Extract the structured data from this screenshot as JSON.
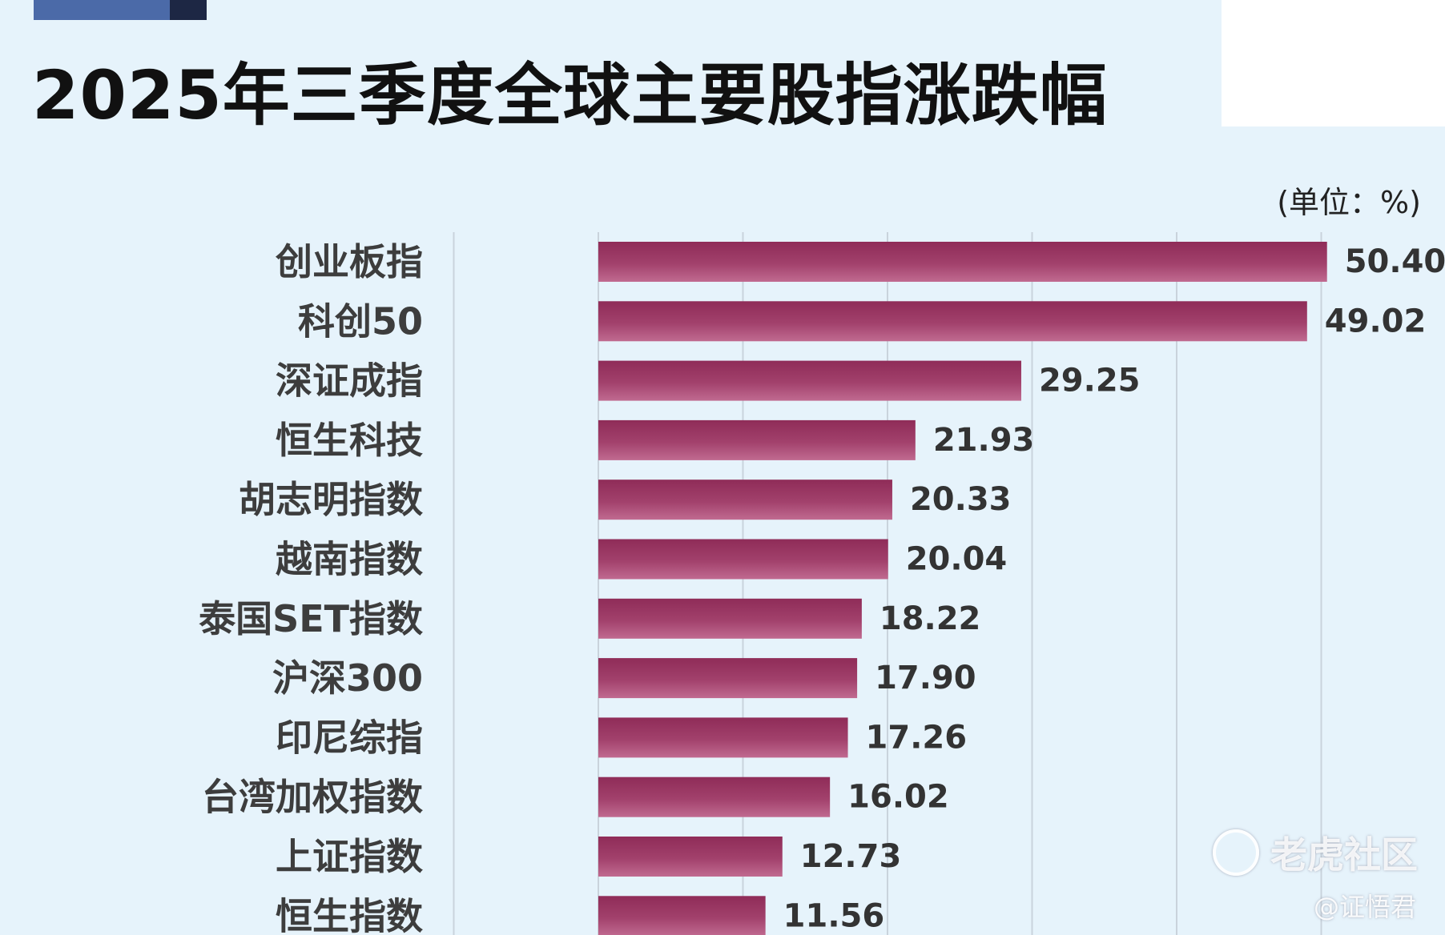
{
  "header": {
    "title": "2025年三季度全球主要股指涨跌幅",
    "unit": "(单位：%)"
  },
  "chart_data": {
    "type": "bar",
    "orientation": "horizontal",
    "categories": [
      "创业板指",
      "科创50",
      "深证成指",
      "恒生科技",
      "胡志明指数",
      "越南指数",
      "泰国SET指数",
      "沪深300",
      "印尼综指",
      "台湾加权指数",
      "上证指数",
      "恒生指数"
    ],
    "values": [
      50.4,
      49.02,
      29.25,
      21.93,
      20.33,
      20.04,
      18.22,
      17.9,
      17.26,
      16.02,
      12.73,
      11.56
    ],
    "value_labels": [
      "50.40",
      "49.02",
      "29.25",
      "21.93",
      "20.33",
      "20.04",
      "18.22",
      "17.90",
      "17.26",
      "16.02",
      "12.73",
      "11.56"
    ],
    "title": "2025年三季度全球主要股指涨跌幅",
    "unit": "(单位：%)",
    "xlim": [
      -10,
      50
    ],
    "grid": true,
    "bar_color": "#9e3a66"
  },
  "watermark": {
    "brand": "老虎社区",
    "handle": "@证悟君",
    "icon": "tiger-community-icon"
  }
}
